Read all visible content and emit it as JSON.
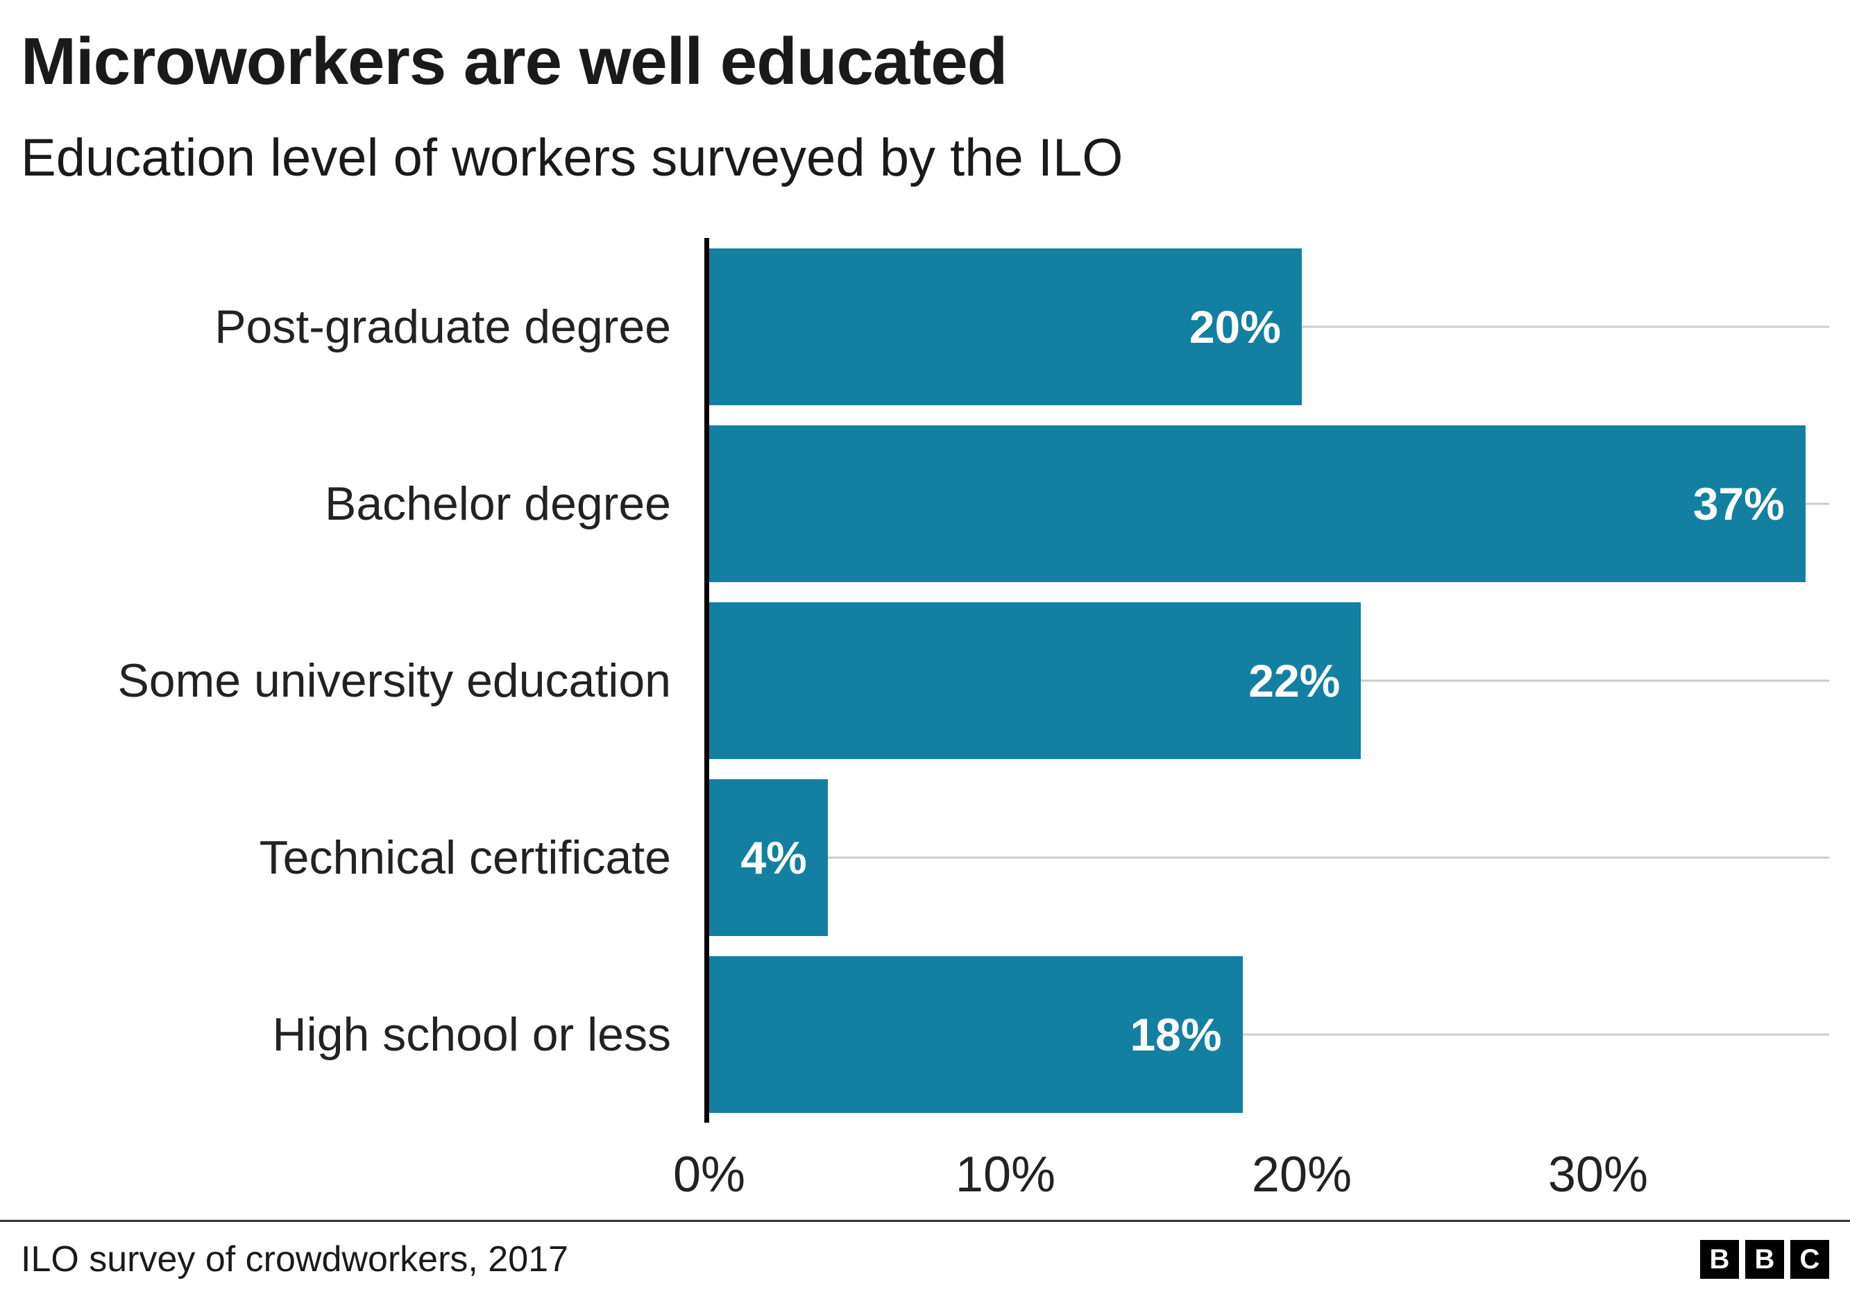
{
  "header": {
    "title": "Microworkers are well educated",
    "subtitle": "Education level of workers surveyed by the ILO"
  },
  "footer": {
    "source": "ILO survey of crowdworkers, 2017",
    "logo_letters": [
      "B",
      "B",
      "C"
    ]
  },
  "colors": {
    "bar": "#1380A1",
    "gridline": "#cbcbcb",
    "axis_line": "#000000",
    "text": "#222222",
    "value_label": "#ffffff",
    "background": "#ffffff"
  },
  "chart_data": {
    "type": "bar",
    "orientation": "horizontal",
    "title": "Microworkers are well educated",
    "subtitle": "Education level of workers surveyed by the ILO",
    "categories": [
      "Post-graduate degree",
      "Bachelor degree",
      "Some university education",
      "Technical certificate",
      "High school or less"
    ],
    "values": [
      20,
      37,
      22,
      4,
      18
    ],
    "value_labels": [
      "20%",
      "37%",
      "22%",
      "4%",
      "18%"
    ],
    "xlabel": "",
    "ylabel": "",
    "xlim": [
      0,
      37.8
    ],
    "xticks": [
      {
        "value": 0,
        "label": "0%"
      },
      {
        "value": 10,
        "label": "10%"
      },
      {
        "value": 20,
        "label": "20%"
      },
      {
        "value": 30,
        "label": "30%"
      }
    ],
    "grid": "horizontal category gridlines, light gray",
    "legend": "none",
    "bar_label_position": "inside-end, white bold"
  }
}
